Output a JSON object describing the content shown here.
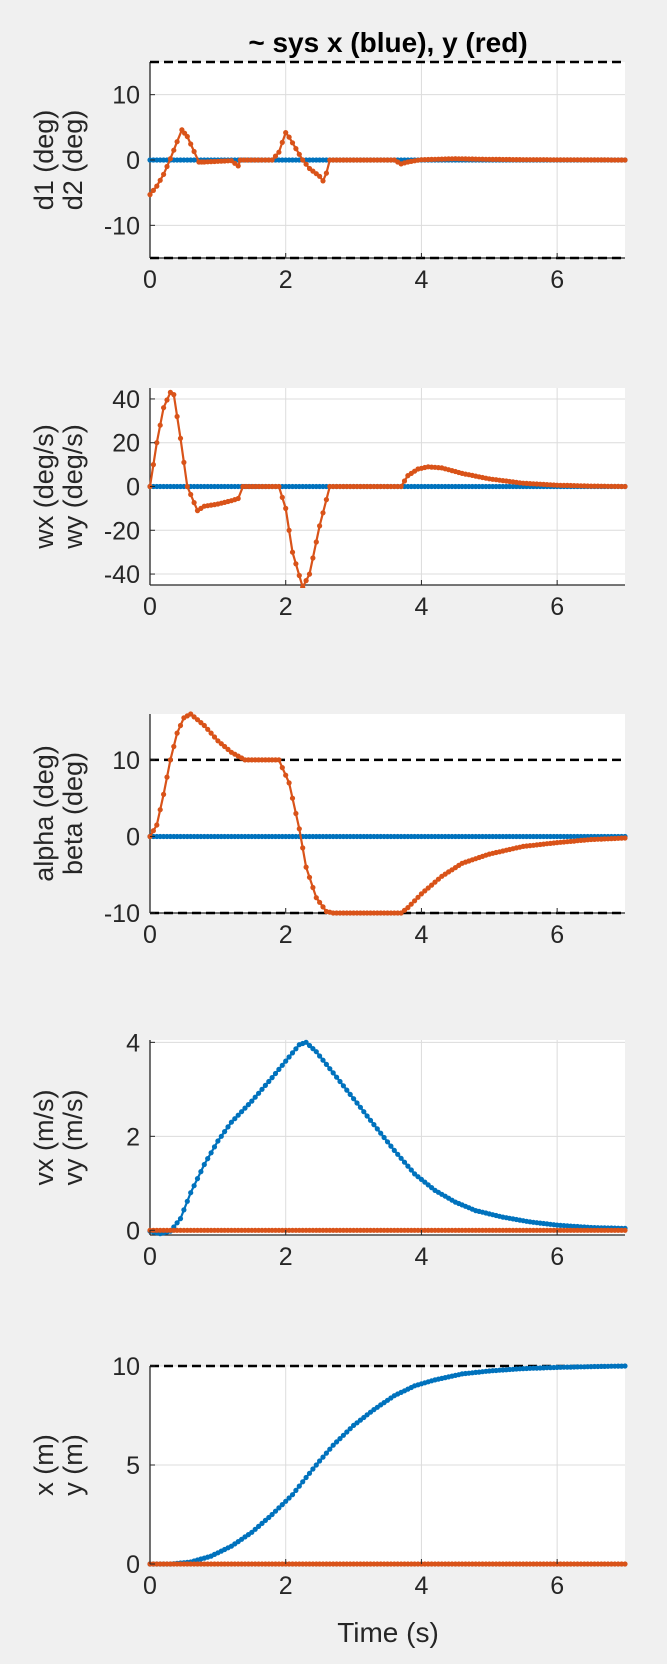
{
  "figure": {
    "title": "~ sys x (blue), y (red)",
    "xlabel": "Time (s)"
  },
  "colors": {
    "x_series": "#0072BD",
    "y_series": "#D95319",
    "limit_line": "#000000",
    "grid": "#dcdcdc",
    "axes_bg": "#ffffff",
    "figure_bg": "#f0f0f0"
  },
  "chart_data": [
    {
      "type": "line",
      "ylabel": [
        "d1 (deg)",
        "d2 (deg)"
      ],
      "xlim": [
        0,
        7
      ],
      "ylim": [
        -15,
        15
      ],
      "xticks": [
        0,
        2,
        4,
        6
      ],
      "yticks": [
        -10,
        0,
        10
      ],
      "grid": true,
      "limit_lines": [
        15,
        -15
      ],
      "series": [
        {
          "points": [
            [
              0,
              0
            ],
            [
              7,
              0
            ]
          ]
        },
        {
          "points": [
            [
              0,
              -5.3
            ],
            [
              0.1,
              -4
            ],
            [
              0.2,
              -2.2
            ],
            [
              0.3,
              0.2
            ],
            [
              0.4,
              2.8
            ],
            [
              0.47,
              4.6
            ],
            [
              0.55,
              3.6
            ],
            [
              0.65,
              1.3
            ],
            [
              0.72,
              -0.3
            ],
            [
              0.8,
              -0.3
            ],
            [
              1.2,
              -0.1
            ],
            [
              1.3,
              -0.9
            ],
            [
              1.33,
              0
            ],
            [
              1.8,
              0
            ],
            [
              1.9,
              1.2
            ],
            [
              2.0,
              4.2
            ],
            [
              2.05,
              3.5
            ],
            [
              2.25,
              0
            ],
            [
              2.35,
              -1.3
            ],
            [
              2.5,
              -2.5
            ],
            [
              2.55,
              -3.2
            ],
            [
              2.6,
              -2
            ],
            [
              2.65,
              0
            ],
            [
              3.6,
              0
            ],
            [
              3.7,
              -0.6
            ],
            [
              3.8,
              -0.3
            ],
            [
              4.0,
              0.05
            ],
            [
              4.5,
              0.2
            ],
            [
              5.0,
              0.1
            ],
            [
              5.5,
              0.05
            ],
            [
              7,
              0
            ]
          ]
        }
      ]
    },
    {
      "type": "line",
      "ylabel": [
        "wx (deg/s)",
        "wy (deg/s)"
      ],
      "xlim": [
        0,
        7
      ],
      "ylim": [
        -45,
        45
      ],
      "xticks": [
        0,
        2,
        4,
        6
      ],
      "yticks": [
        -40,
        -20,
        0,
        20,
        40
      ],
      "grid": true,
      "limit_lines": [],
      "series": [
        {
          "points": [
            [
              0,
              0
            ],
            [
              7,
              0
            ]
          ]
        },
        {
          "points": [
            [
              0,
              0
            ],
            [
              0.1,
              20
            ],
            [
              0.2,
              36
            ],
            [
              0.3,
              43
            ],
            [
              0.35,
              42
            ],
            [
              0.45,
              22
            ],
            [
              0.55,
              0
            ],
            [
              0.7,
              -11
            ],
            [
              0.8,
              -9
            ],
            [
              1.0,
              -8
            ],
            [
              1.2,
              -6.5
            ],
            [
              1.3,
              -5.5
            ],
            [
              1.37,
              0
            ],
            [
              1.9,
              0
            ],
            [
              2.0,
              -10
            ],
            [
              2.1,
              -30
            ],
            [
              2.25,
              -46
            ],
            [
              2.35,
              -40
            ],
            [
              2.5,
              -18
            ],
            [
              2.65,
              0
            ],
            [
              3.7,
              0
            ],
            [
              3.8,
              5
            ],
            [
              3.95,
              8
            ],
            [
              4.1,
              9
            ],
            [
              4.3,
              8.5
            ],
            [
              4.6,
              6
            ],
            [
              5.0,
              3.5
            ],
            [
              5.5,
              1.5
            ],
            [
              6.0,
              0.6
            ],
            [
              6.5,
              0.2
            ],
            [
              7,
              0
            ]
          ]
        }
      ]
    },
    {
      "type": "line",
      "ylabel": [
        "alpha (deg)",
        "beta (deg)"
      ],
      "xlim": [
        0,
        7
      ],
      "ylim": [
        -10,
        16
      ],
      "xticks": [
        0,
        2,
        4,
        6
      ],
      "yticks": [
        -10,
        0,
        10
      ],
      "grid": false,
      "limit_lines": [
        10,
        -10
      ],
      "series": [
        {
          "points": [
            [
              0,
              0
            ],
            [
              7,
              0
            ]
          ]
        },
        {
          "points": [
            [
              0,
              0
            ],
            [
              0.1,
              1.5
            ],
            [
              0.2,
              5.5
            ],
            [
              0.3,
              10
            ],
            [
              0.4,
              13.5
            ],
            [
              0.5,
              15.5
            ],
            [
              0.6,
              16
            ],
            [
              0.8,
              14.5
            ],
            [
              1.0,
              12.5
            ],
            [
              1.2,
              11
            ],
            [
              1.4,
              10
            ],
            [
              1.9,
              10
            ],
            [
              2.05,
              7
            ],
            [
              2.2,
              1
            ],
            [
              2.3,
              -4
            ],
            [
              2.45,
              -8
            ],
            [
              2.6,
              -9.8
            ],
            [
              2.7,
              -10
            ],
            [
              3.7,
              -10
            ],
            [
              3.8,
              -9.3
            ],
            [
              4.0,
              -7.5
            ],
            [
              4.3,
              -5.2
            ],
            [
              4.6,
              -3.5
            ],
            [
              5.0,
              -2.3
            ],
            [
              5.5,
              -1.3
            ],
            [
              6.0,
              -0.8
            ],
            [
              6.5,
              -0.4
            ],
            [
              7,
              -0.2
            ]
          ]
        }
      ]
    },
    {
      "type": "line",
      "ylabel": [
        "vx (m/s)",
        "vy (m/s)"
      ],
      "xlim": [
        0,
        7
      ],
      "ylim": [
        -0.1,
        4.05
      ],
      "xticks": [
        0,
        2,
        4,
        6
      ],
      "yticks": [
        0,
        2,
        4
      ],
      "grid": true,
      "limit_lines": [],
      "series": [
        {
          "points": [
            [
              0,
              -0.02
            ],
            [
              0.15,
              -0.07
            ],
            [
              0.3,
              -0.02
            ],
            [
              0.45,
              0.25
            ],
            [
              0.6,
              0.8
            ],
            [
              0.8,
              1.4
            ],
            [
              1.0,
              1.9
            ],
            [
              1.2,
              2.3
            ],
            [
              1.5,
              2.75
            ],
            [
              1.8,
              3.25
            ],
            [
              2.0,
              3.6
            ],
            [
              2.2,
              3.95
            ],
            [
              2.3,
              4.0
            ],
            [
              2.45,
              3.8
            ],
            [
              2.7,
              3.35
            ],
            [
              3.0,
              2.8
            ],
            [
              3.3,
              2.25
            ],
            [
              3.6,
              1.7
            ],
            [
              3.9,
              1.2
            ],
            [
              4.2,
              0.85
            ],
            [
              4.5,
              0.6
            ],
            [
              4.8,
              0.42
            ],
            [
              5.2,
              0.28
            ],
            [
              5.6,
              0.18
            ],
            [
              6.0,
              0.11
            ],
            [
              6.5,
              0.06
            ],
            [
              7,
              0.04
            ]
          ]
        },
        {
          "points": [
            [
              0,
              0
            ],
            [
              7,
              0
            ]
          ]
        }
      ]
    },
    {
      "type": "line",
      "ylabel": [
        "x (m)",
        "y (m)"
      ],
      "xlim": [
        0,
        7
      ],
      "ylim": [
        0,
        10
      ],
      "xticks": [
        0,
        2,
        4,
        6
      ],
      "yticks": [
        0,
        5,
        10
      ],
      "grid": true,
      "limit_lines": [
        10,
        0
      ],
      "series": [
        {
          "points": [
            [
              0,
              0
            ],
            [
              0.3,
              0
            ],
            [
              0.6,
              0.1
            ],
            [
              0.9,
              0.4
            ],
            [
              1.2,
              0.9
            ],
            [
              1.5,
              1.6
            ],
            [
              1.8,
              2.5
            ],
            [
              2.1,
              3.5
            ],
            [
              2.4,
              4.8
            ],
            [
              2.7,
              6.0
            ],
            [
              3.0,
              7.0
            ],
            [
              3.3,
              7.8
            ],
            [
              3.6,
              8.5
            ],
            [
              3.9,
              9.0
            ],
            [
              4.2,
              9.3
            ],
            [
              4.6,
              9.6
            ],
            [
              5.0,
              9.75
            ],
            [
              5.5,
              9.87
            ],
            [
              6.0,
              9.93
            ],
            [
              6.5,
              9.97
            ],
            [
              7,
              10
            ]
          ]
        },
        {
          "points": [
            [
              0,
              0
            ],
            [
              7,
              0
            ]
          ]
        }
      ]
    }
  ]
}
